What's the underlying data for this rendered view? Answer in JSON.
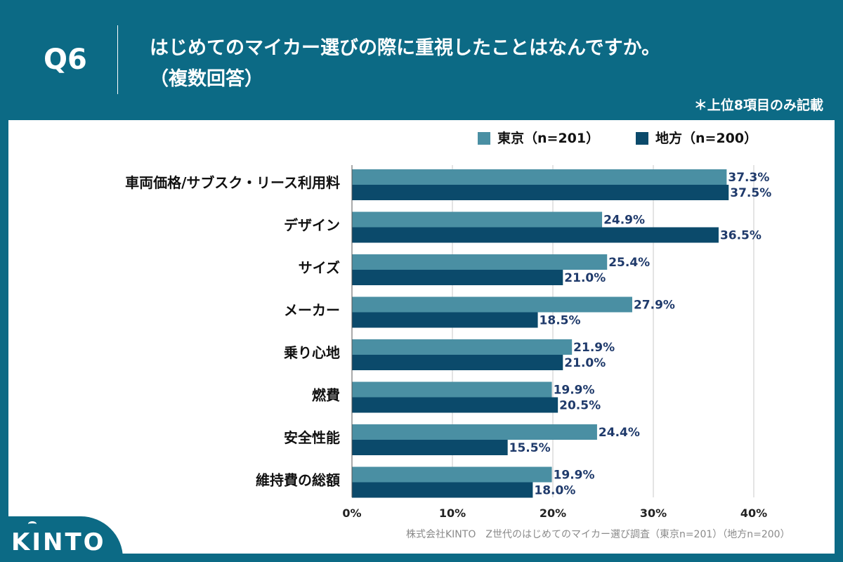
{
  "header": {
    "question_label": "Q6",
    "title_line1": "はじめてのマイカー選びの際に重視したことはなんですか。",
    "title_line2": "（複数回答）",
    "note": "＊上位8項目のみ記載"
  },
  "footer": {
    "source": "株式会社KINTO　Z世代のはじめてのマイカー選び調査（東京n=201）（地方n=200）",
    "logo": "KINTO"
  },
  "colors": {
    "background": "#0c6a85",
    "tokyo": "#4a8fa3",
    "regional": "#0b4a6b",
    "value_label": "#1f3a6b",
    "grid": "#c8c8c8"
  },
  "chart_data": {
    "type": "bar",
    "orientation": "horizontal",
    "categories": [
      "車両価格/サブスク・リース利用料",
      "デザイン",
      "サイズ",
      "メーカー",
      "乗り心地",
      "燃費",
      "安全性能",
      "維持費の総額"
    ],
    "series": [
      {
        "name": "東京（n=201）",
        "values": [
          37.3,
          24.9,
          25.4,
          27.9,
          21.9,
          19.9,
          24.4,
          19.9
        ]
      },
      {
        "name": "地方（n=200）",
        "values": [
          37.5,
          36.5,
          21.0,
          18.5,
          21.0,
          20.5,
          15.5,
          18.0
        ]
      }
    ],
    "value_labels": [
      [
        "37.3%",
        "24.9%",
        "25.4%",
        "27.9%",
        "21.9%",
        "19.9%",
        "24.4%",
        "19.9%"
      ],
      [
        "37.5%",
        "36.5%",
        "21.0%",
        "18.5%",
        "21.0%",
        "20.5%",
        "15.5%",
        "18.0%"
      ]
    ],
    "x_ticks": [
      0,
      10,
      20,
      30,
      40
    ],
    "x_tick_labels": [
      "0%",
      "10%",
      "20%",
      "30%",
      "40%"
    ],
    "xlim": [
      0,
      40
    ],
    "grid": true,
    "legend": "top-right"
  }
}
